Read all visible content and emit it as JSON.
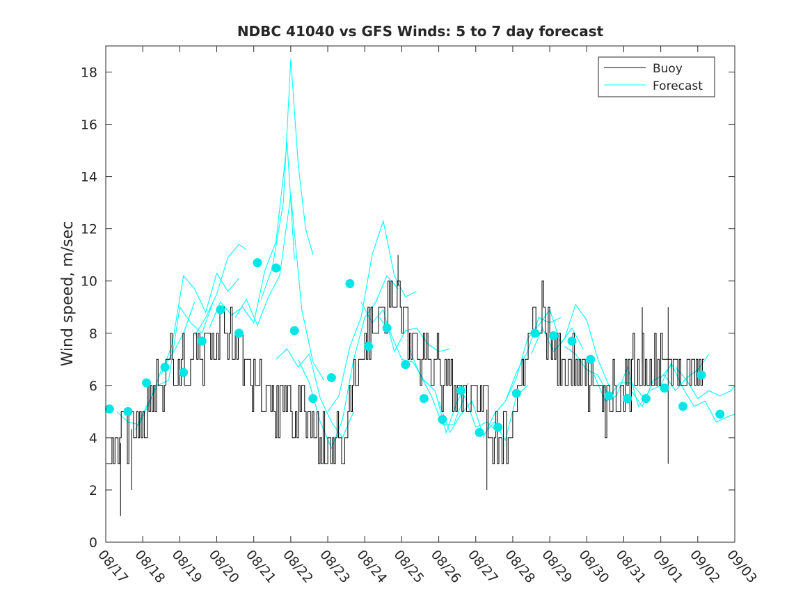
{
  "chart_data": {
    "type": "line",
    "title": "NDBC 41040 vs GFS Winds: 5 to 7 day forecast",
    "xlabel": "",
    "ylabel": "Wind speed, m/sec",
    "xlim": [
      0,
      17
    ],
    "ylim": [
      0,
      19
    ],
    "yticks": [
      0,
      2,
      4,
      6,
      8,
      10,
      12,
      14,
      16,
      18
    ],
    "xtick_labels": [
      "08/17",
      "08/18",
      "08/19",
      "08/20",
      "08/21",
      "08/22",
      "08/23",
      "08/24",
      "08/25",
      "08/26",
      "08/27",
      "08/28",
      "08/29",
      "08/30",
      "08/31",
      "09/01",
      "09/02",
      "09/03"
    ],
    "legend": {
      "position": "top-right",
      "entries": [
        "Buoy",
        "Forecast"
      ]
    },
    "colors": {
      "buoy": "#000000",
      "forecast": "#00ffff",
      "marker": "#00e5e5"
    },
    "buoy_knots": [
      [
        0.0,
        3.5
      ],
      [
        0.4,
        3.8
      ],
      [
        0.8,
        4.5
      ],
      [
        1.2,
        5.0
      ],
      [
        1.6,
        6.5
      ],
      [
        2.0,
        7.0
      ],
      [
        2.4,
        7.0
      ],
      [
        2.8,
        7.5
      ],
      [
        3.2,
        8.0
      ],
      [
        3.6,
        7.5
      ],
      [
        4.0,
        6.0
      ],
      [
        4.4,
        5.0
      ],
      [
        4.8,
        5.5
      ],
      [
        5.2,
        5.2
      ],
      [
        5.6,
        4.2
      ],
      [
        6.0,
        3.5
      ],
      [
        6.4,
        4.5
      ],
      [
        6.8,
        6.5
      ],
      [
        7.2,
        8.2
      ],
      [
        7.6,
        8.8
      ],
      [
        7.9,
        9.8
      ],
      [
        8.2,
        8.0
      ],
      [
        8.6,
        7.0
      ],
      [
        9.0,
        6.5
      ],
      [
        9.4,
        6.0
      ],
      [
        9.8,
        5.2
      ],
      [
        10.2,
        5.5
      ],
      [
        10.6,
        3.8
      ],
      [
        11.0,
        4.5
      ],
      [
        11.4,
        7.5
      ],
      [
        11.8,
        8.5
      ],
      [
        12.2,
        7.0
      ],
      [
        12.6,
        6.5
      ],
      [
        13.0,
        6.5
      ],
      [
        13.4,
        5.5
      ],
      [
        13.8,
        5.5
      ],
      [
        14.2,
        6.5
      ],
      [
        14.6,
        7.0
      ],
      [
        15.0,
        6.8
      ],
      [
        15.4,
        6.5
      ],
      [
        15.8,
        6.5
      ],
      [
        16.2,
        6.5
      ]
    ],
    "buoy_spikes": [
      [
        0.4,
        1.0
      ],
      [
        0.7,
        2.0
      ],
      [
        15.2,
        3.0
      ],
      [
        10.3,
        2.0
      ],
      [
        15.2,
        9.0
      ],
      [
        14.5,
        9.0
      ],
      [
        7.9,
        11.0
      ]
    ],
    "forecast_markers": [
      [
        0.1,
        5.1
      ],
      [
        0.6,
        5.0
      ],
      [
        1.1,
        6.1
      ],
      [
        1.6,
        6.7
      ],
      [
        2.1,
        6.5
      ],
      [
        2.6,
        7.7
      ],
      [
        3.1,
        8.9
      ],
      [
        3.6,
        8.0
      ],
      [
        4.1,
        10.7
      ],
      [
        4.6,
        10.5
      ],
      [
        5.1,
        8.1
      ],
      [
        5.6,
        5.5
      ],
      [
        6.1,
        6.3
      ],
      [
        6.6,
        9.9
      ],
      [
        7.1,
        7.5
      ],
      [
        7.6,
        8.2
      ],
      [
        8.1,
        6.8
      ],
      [
        8.6,
        5.5
      ],
      [
        9.1,
        4.7
      ],
      [
        9.6,
        5.8
      ],
      [
        10.1,
        4.2
      ],
      [
        10.6,
        4.4
      ],
      [
        11.1,
        5.7
      ],
      [
        11.6,
        8.0
      ],
      [
        12.1,
        7.9
      ],
      [
        12.6,
        7.7
      ],
      [
        13.1,
        7.0
      ],
      [
        13.6,
        5.6
      ],
      [
        14.1,
        5.5
      ],
      [
        14.6,
        5.5
      ],
      [
        15.1,
        5.9
      ],
      [
        15.6,
        5.2
      ],
      [
        16.1,
        6.4
      ],
      [
        16.6,
        4.9
      ]
    ],
    "forecast_series": [
      {
        "name": "run1",
        "points": [
          [
            0.3,
            5.0
          ],
          [
            0.6,
            4.6
          ],
          [
            0.9,
            4.5
          ],
          [
            1.2,
            5.4
          ],
          [
            1.5,
            6.6
          ],
          [
            1.8,
            7.2
          ],
          [
            2.1,
            8.0
          ],
          [
            2.4,
            9.2
          ]
        ]
      },
      {
        "name": "run2",
        "points": [
          [
            0.8,
            4.3
          ],
          [
            1.1,
            5.2
          ],
          [
            1.4,
            6.0
          ],
          [
            1.7,
            6.2
          ],
          [
            2.0,
            9.0
          ],
          [
            2.3,
            8.4
          ],
          [
            2.6,
            8.0
          ],
          [
            2.9,
            9.2
          ]
        ]
      },
      {
        "name": "run3",
        "points": [
          [
            1.5,
            6.4
          ],
          [
            1.8,
            7.6
          ],
          [
            2.1,
            10.2
          ],
          [
            2.4,
            9.7
          ],
          [
            2.7,
            8.8
          ],
          [
            3.0,
            10.3
          ],
          [
            3.3,
            9.6
          ],
          [
            3.6,
            10.1
          ]
        ]
      },
      {
        "name": "run4",
        "points": [
          [
            2.4,
            7.9
          ],
          [
            2.7,
            8.6
          ],
          [
            3.0,
            9.5
          ],
          [
            3.3,
            10.9
          ],
          [
            3.6,
            11.4
          ],
          [
            3.8,
            11.2
          ]
        ]
      },
      {
        "name": "run5",
        "points": [
          [
            2.8,
            8.2
          ],
          [
            3.1,
            9.2
          ],
          [
            3.4,
            8.7
          ],
          [
            3.7,
            9.0
          ],
          [
            4.0,
            8.4
          ],
          [
            4.3,
            10.4
          ],
          [
            4.6,
            11.5
          ],
          [
            4.9,
            15.3
          ],
          [
            5.1,
            10.8
          ]
        ]
      },
      {
        "name": "run6",
        "points": [
          [
            3.5,
            8.6
          ],
          [
            3.8,
            9.3
          ],
          [
            4.1,
            8.3
          ],
          [
            4.4,
            9.4
          ],
          [
            4.7,
            10.2
          ],
          [
            5.0,
            13.3
          ],
          [
            5.3,
            8.9
          ],
          [
            5.6,
            6.9
          ],
          [
            5.9,
            6.2
          ]
        ]
      },
      {
        "name": "run7",
        "points": [
          [
            4.2,
            9.3
          ],
          [
            4.5,
            10.5
          ],
          [
            4.8,
            13.0
          ],
          [
            5.0,
            18.5
          ],
          [
            5.2,
            14.5
          ],
          [
            5.4,
            12.0
          ],
          [
            5.6,
            11.0
          ]
        ]
      },
      {
        "name": "run8",
        "points": [
          [
            4.6,
            7.0
          ],
          [
            4.9,
            7.4
          ],
          [
            5.2,
            6.7
          ],
          [
            5.5,
            7.2
          ],
          [
            5.8,
            5.5
          ],
          [
            6.1,
            4.6
          ],
          [
            6.4,
            4.0
          ],
          [
            6.7,
            5.0
          ]
        ]
      },
      {
        "name": "run9",
        "points": [
          [
            5.2,
            7.0
          ],
          [
            5.5,
            6.1
          ],
          [
            5.8,
            4.6
          ],
          [
            6.1,
            3.6
          ],
          [
            6.4,
            4.7
          ],
          [
            6.7,
            7.0
          ],
          [
            7.0,
            8.6
          ],
          [
            7.3,
            9.2
          ],
          [
            7.6,
            10.2
          ],
          [
            7.9,
            9.7
          ]
        ]
      },
      {
        "name": "run10",
        "points": [
          [
            6.0,
            5.0
          ],
          [
            6.3,
            5.6
          ],
          [
            6.6,
            7.5
          ],
          [
            6.9,
            8.6
          ],
          [
            7.2,
            11.0
          ],
          [
            7.5,
            12.3
          ],
          [
            7.8,
            10.2
          ],
          [
            8.1,
            9.4
          ],
          [
            8.4,
            9.6
          ]
        ]
      },
      {
        "name": "run11",
        "points": [
          [
            6.9,
            9.2
          ],
          [
            7.2,
            8.4
          ],
          [
            7.5,
            8.9
          ],
          [
            7.8,
            7.3
          ],
          [
            8.1,
            8.1
          ],
          [
            8.4,
            8.2
          ],
          [
            8.7,
            7.6
          ],
          [
            9.0,
            7.3
          ],
          [
            9.3,
            7.4
          ]
        ]
      },
      {
        "name": "run12",
        "points": [
          [
            7.4,
            8.6
          ],
          [
            7.7,
            8.0
          ],
          [
            8.0,
            7.0
          ],
          [
            8.3,
            6.9
          ],
          [
            8.6,
            6.2
          ],
          [
            8.9,
            5.8
          ],
          [
            9.2,
            4.2
          ],
          [
            9.5,
            5.4
          ],
          [
            9.8,
            6.1
          ]
        ]
      },
      {
        "name": "run13",
        "points": [
          [
            8.2,
            7.4
          ],
          [
            8.5,
            6.4
          ],
          [
            8.8,
            5.6
          ],
          [
            9.1,
            4.5
          ],
          [
            9.4,
            4.5
          ],
          [
            9.7,
            5.6
          ],
          [
            10.0,
            4.4
          ],
          [
            10.3,
            4.6
          ],
          [
            10.6,
            4.2
          ]
        ]
      },
      {
        "name": "run14",
        "points": [
          [
            9.0,
            5.4
          ],
          [
            9.3,
            4.2
          ],
          [
            9.6,
            4.9
          ],
          [
            9.9,
            5.4
          ],
          [
            10.2,
            4.1
          ],
          [
            10.5,
            4.6
          ],
          [
            10.8,
            3.9
          ],
          [
            11.1,
            5.6
          ],
          [
            11.4,
            6.0
          ]
        ]
      },
      {
        "name": "run15",
        "points": [
          [
            10.2,
            4.0
          ],
          [
            10.5,
            4.9
          ],
          [
            10.8,
            5.4
          ],
          [
            11.1,
            6.5
          ],
          [
            11.4,
            7.3
          ],
          [
            11.7,
            8.6
          ],
          [
            12.0,
            8.4
          ],
          [
            12.3,
            8.6
          ]
        ]
      },
      {
        "name": "run16",
        "points": [
          [
            10.8,
            5.4
          ],
          [
            11.1,
            6.3
          ],
          [
            11.4,
            7.8
          ],
          [
            11.7,
            8.3
          ],
          [
            12.0,
            8.9
          ],
          [
            12.3,
            7.6
          ],
          [
            12.6,
            8.2
          ],
          [
            12.9,
            7.4
          ]
        ]
      },
      {
        "name": "run17",
        "points": [
          [
            11.5,
            7.2
          ],
          [
            11.8,
            8.2
          ],
          [
            12.1,
            7.3
          ],
          [
            12.4,
            7.8
          ],
          [
            12.7,
            9.1
          ],
          [
            13.0,
            8.5
          ],
          [
            13.3,
            7.0
          ],
          [
            13.6,
            6.0
          ]
        ]
      },
      {
        "name": "run18",
        "points": [
          [
            12.4,
            7.5
          ],
          [
            12.7,
            7.2
          ],
          [
            13.0,
            6.6
          ],
          [
            13.3,
            6.4
          ],
          [
            13.6,
            5.6
          ],
          [
            13.9,
            6.1
          ],
          [
            14.2,
            6.1
          ],
          [
            14.5,
            5.6
          ]
        ]
      },
      {
        "name": "run19",
        "points": [
          [
            13.2,
            6.4
          ],
          [
            13.5,
            5.4
          ],
          [
            13.8,
            5.6
          ],
          [
            14.1,
            6.7
          ],
          [
            14.4,
            5.2
          ],
          [
            14.7,
            5.8
          ],
          [
            15.0,
            6.0
          ],
          [
            15.3,
            6.9
          ]
        ]
      },
      {
        "name": "run20",
        "points": [
          [
            14.2,
            5.8
          ],
          [
            14.5,
            5.2
          ],
          [
            14.8,
            6.2
          ],
          [
            15.1,
            6.4
          ],
          [
            15.4,
            5.8
          ],
          [
            15.7,
            6.3
          ],
          [
            16.0,
            6.6
          ],
          [
            16.3,
            7.2
          ]
        ]
      },
      {
        "name": "run21",
        "points": [
          [
            15.0,
            6.3
          ],
          [
            15.3,
            6.8
          ],
          [
            15.6,
            5.9
          ],
          [
            15.9,
            5.2
          ],
          [
            16.2,
            5.4
          ],
          [
            16.5,
            4.6
          ],
          [
            16.8,
            4.8
          ],
          [
            17.0,
            4.9
          ]
        ]
      },
      {
        "name": "run22",
        "points": [
          [
            15.4,
            6.7
          ],
          [
            15.7,
            6.2
          ],
          [
            16.0,
            5.5
          ],
          [
            16.3,
            5.8
          ],
          [
            16.6,
            5.6
          ],
          [
            16.9,
            5.8
          ],
          [
            17.0,
            6.0
          ]
        ]
      }
    ]
  }
}
